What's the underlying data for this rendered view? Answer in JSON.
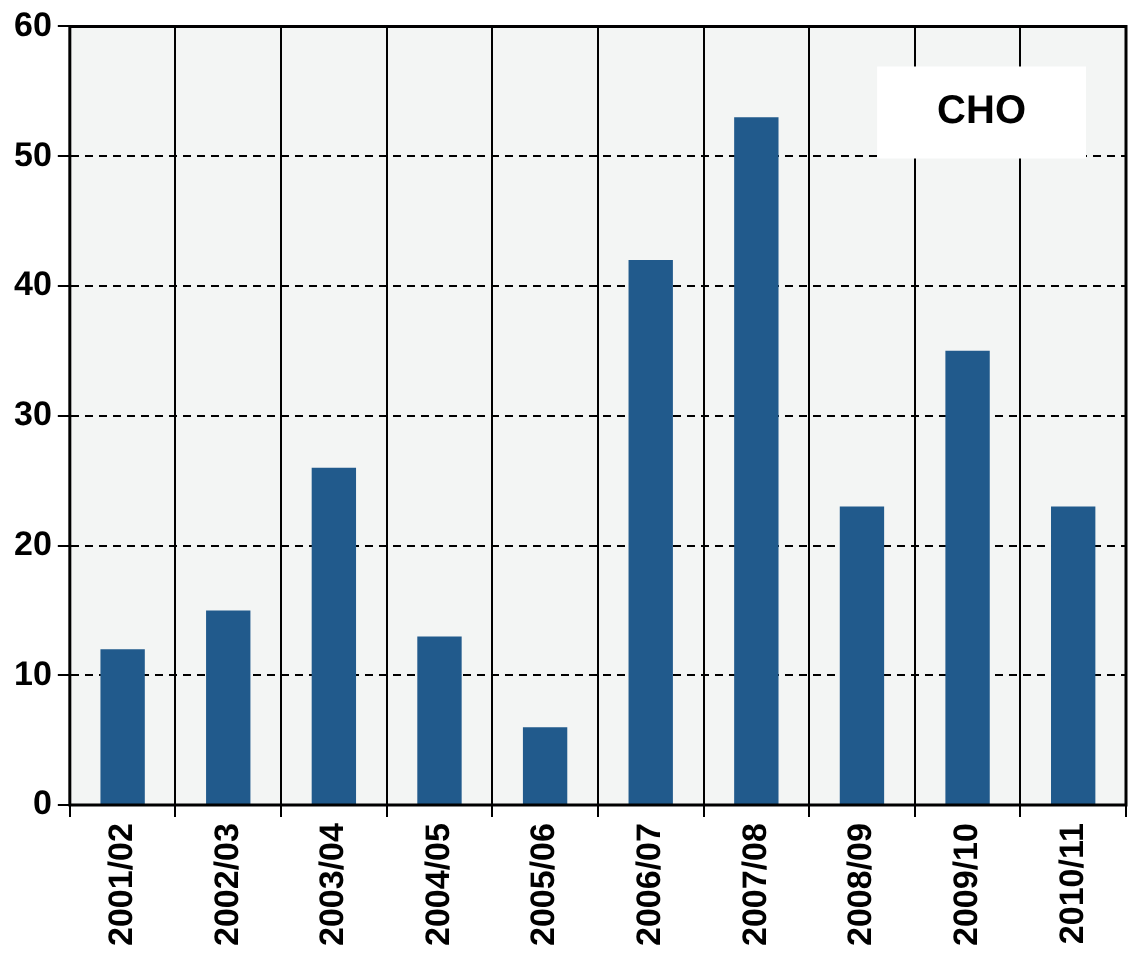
{
  "chart_data": {
    "type": "bar",
    "categories": [
      "2001/02",
      "2002/03",
      "2003/04",
      "2004/05",
      "2005/06",
      "2006/07",
      "2007/08",
      "2008/09",
      "2009/10",
      "2010/11"
    ],
    "values": [
      12,
      15,
      26,
      13,
      6,
      42,
      53,
      23,
      35,
      23
    ],
    "color": "#215a8c",
    "ylim": [
      0,
      60
    ],
    "yticks": [
      0,
      10,
      20,
      30,
      40,
      50,
      60
    ],
    "grid": true,
    "annotations": [
      "CHO"
    ]
  }
}
